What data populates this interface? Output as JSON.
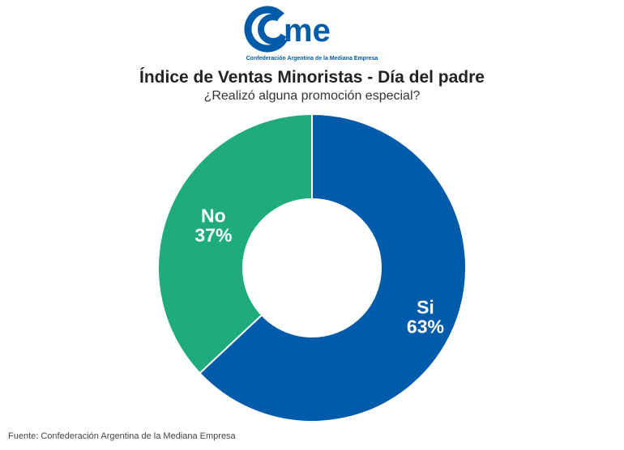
{
  "logo": {
    "text": "came",
    "tagline": "Confederación Argentina de la Mediana Empresa"
  },
  "chart_data": {
    "type": "pie",
    "title": "Índice de Ventas Minoristas - Día del padre",
    "subtitle": "¿Realizó alguna promoción especial?",
    "donut": true,
    "categories": [
      "Si",
      "No"
    ],
    "values": [
      63,
      37
    ],
    "labels": [
      "63%",
      "37%"
    ],
    "colors": [
      "#005BAA",
      "#1FAB7B"
    ],
    "start": "top",
    "direction": "clockwise"
  },
  "source": "Fuente: Confederación Argentina de la Mediana Empresa"
}
